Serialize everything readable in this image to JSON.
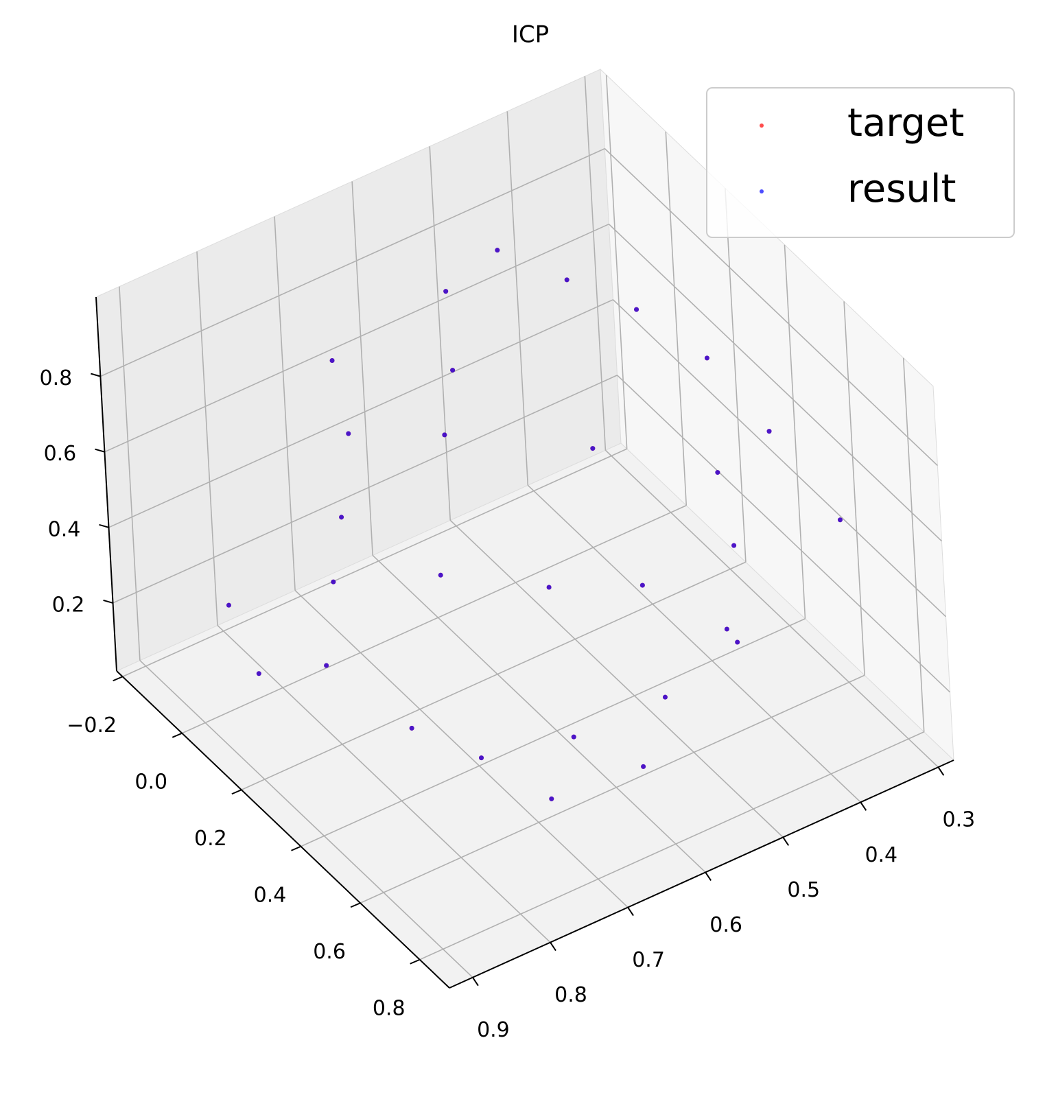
{
  "chart_data": {
    "type": "scatter3d",
    "title": "ICP",
    "xlim": [
      0.28,
      0.93
    ],
    "ylim": [
      -0.22,
      0.9
    ],
    "zlim": [
      0.02,
      1.01
    ],
    "xticks": [
      0.3,
      0.4,
      0.5,
      0.6,
      0.7,
      0.8,
      0.9
    ],
    "yticks": [
      {
        "value": -0.2,
        "label": "−0.2"
      },
      {
        "value": 0,
        "label": "0.0"
      },
      0.2,
      0.4,
      0.6,
      0.8
    ],
    "zticks": [
      0.2,
      0.4,
      0.6,
      0.8
    ],
    "grid": true,
    "legend": "upper right",
    "series": [
      {
        "name": "target",
        "color": "#ff0000",
        "x": [
          0.45,
          0.5,
          0.55,
          0.4,
          0.6,
          0.35,
          0.65,
          0.5,
          0.7,
          0.75,
          0.8,
          0.85,
          0.7,
          0.6,
          0.5,
          0.4,
          0.45,
          0.55,
          0.65,
          0.75,
          0.8,
          0.38,
          0.42,
          0.6,
          0.7,
          0.9,
          0.88,
          0.3,
          0.33,
          0.68
        ],
        "y": [
          0.1,
          0.0,
          -0.05,
          0.2,
          0.1,
          0.3,
          0.2,
          0.3,
          0.0,
          0.1,
          0.2,
          0.3,
          0.3,
          0.4,
          0.45,
          0.5,
          0.6,
          0.65,
          0.6,
          0.55,
          0.45,
          0.4,
          0.55,
          0.7,
          0.65,
          0.2,
          0.05,
          0.6,
          0.45,
          -0.1
        ],
        "z": [
          0.85,
          0.9,
          0.8,
          0.8,
          0.75,
          0.7,
          0.7,
          0.6,
          0.6,
          0.5,
          0.45,
          0.35,
          0.45,
          0.4,
          0.35,
          0.4,
          0.3,
          0.25,
          0.2,
          0.2,
          0.25,
          0.5,
          0.2,
          0.15,
          0.12,
          0.3,
          0.35,
          0.45,
          0.6,
          0.7
        ]
      },
      {
        "name": "result",
        "color": "#0000ff",
        "x": [
          0.45,
          0.5,
          0.55,
          0.4,
          0.6,
          0.35,
          0.65,
          0.5,
          0.7,
          0.75,
          0.8,
          0.85,
          0.7,
          0.6,
          0.5,
          0.4,
          0.45,
          0.55,
          0.65,
          0.75,
          0.8,
          0.38,
          0.42,
          0.6,
          0.7,
          0.9,
          0.88,
          0.3,
          0.33,
          0.68
        ],
        "y": [
          0.1,
          0.0,
          -0.05,
          0.2,
          0.1,
          0.3,
          0.2,
          0.3,
          0.0,
          0.1,
          0.2,
          0.3,
          0.3,
          0.4,
          0.45,
          0.5,
          0.6,
          0.65,
          0.6,
          0.55,
          0.45,
          0.4,
          0.55,
          0.7,
          0.65,
          0.2,
          0.05,
          0.6,
          0.45,
          -0.1
        ],
        "z": [
          0.85,
          0.9,
          0.8,
          0.8,
          0.75,
          0.7,
          0.7,
          0.6,
          0.6,
          0.5,
          0.45,
          0.35,
          0.45,
          0.4,
          0.35,
          0.4,
          0.3,
          0.25,
          0.2,
          0.2,
          0.25,
          0.5,
          0.2,
          0.15,
          0.12,
          0.3,
          0.35,
          0.45,
          0.6,
          0.7
        ]
      }
    ]
  }
}
